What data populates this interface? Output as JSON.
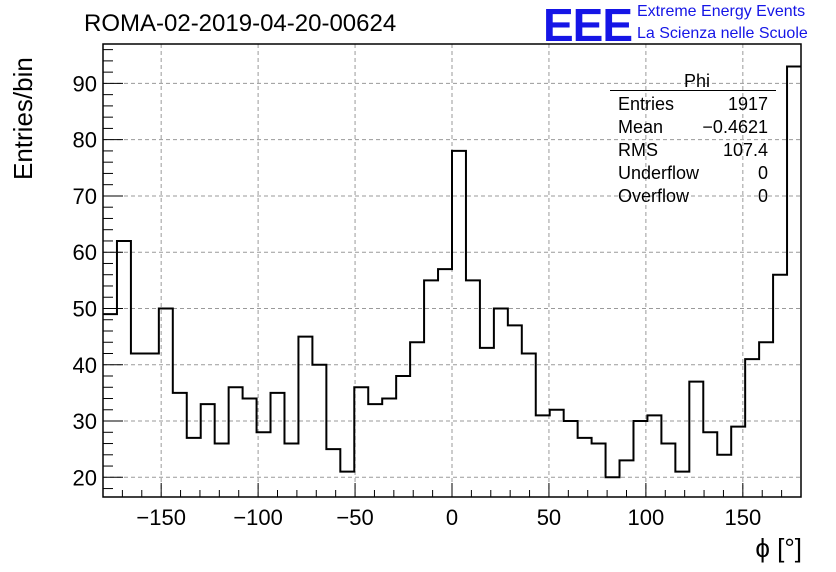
{
  "header": {
    "run_title": "ROMA-02-2019-04-20-00624",
    "logo_text": "EEE",
    "logo_line1": "Extreme Energy Events",
    "logo_line2": "La Scienza nelle Scuole",
    "logo_color": "#1515e6"
  },
  "stats_box": {
    "title": "Phi",
    "rows": [
      {
        "label": "Entries",
        "value": "1917"
      },
      {
        "label": "Mean",
        "value": "−0.4621"
      },
      {
        "label": "RMS",
        "value": "107.4"
      },
      {
        "label": "Underflow",
        "value": "0"
      },
      {
        "label": "Overflow",
        "value": "0"
      }
    ]
  },
  "chart_data": {
    "type": "bar",
    "histogram": true,
    "xlabel": "ϕ [°]",
    "ylabel": "Entries/bin",
    "xlim": [
      -180,
      180
    ],
    "ylim": [
      16.5,
      97
    ],
    "bin_width": 7.2,
    "grid": true,
    "x_ticks": [
      -150,
      -100,
      -50,
      0,
      50,
      100,
      150
    ],
    "x_tick_labels": [
      "−150",
      "−100",
      "−50",
      "0",
      "50",
      "100",
      "150"
    ],
    "y_ticks": [
      20,
      30,
      40,
      50,
      60,
      70,
      80,
      90
    ],
    "y_tick_labels": [
      "20",
      "30",
      "40",
      "50",
      "60",
      "70",
      "80",
      "90"
    ],
    "values": [
      49,
      62,
      42,
      42,
      50,
      35,
      27,
      33,
      26,
      36,
      34,
      28,
      35,
      26,
      45,
      40,
      25,
      21,
      36,
      33,
      34,
      38,
      44,
      55,
      57,
      78,
      55,
      43,
      50,
      47,
      42,
      31,
      32,
      30,
      27,
      26,
      20,
      23,
      30,
      31,
      26,
      21,
      37,
      28,
      24,
      29,
      41,
      44,
      56,
      93
    ]
  }
}
